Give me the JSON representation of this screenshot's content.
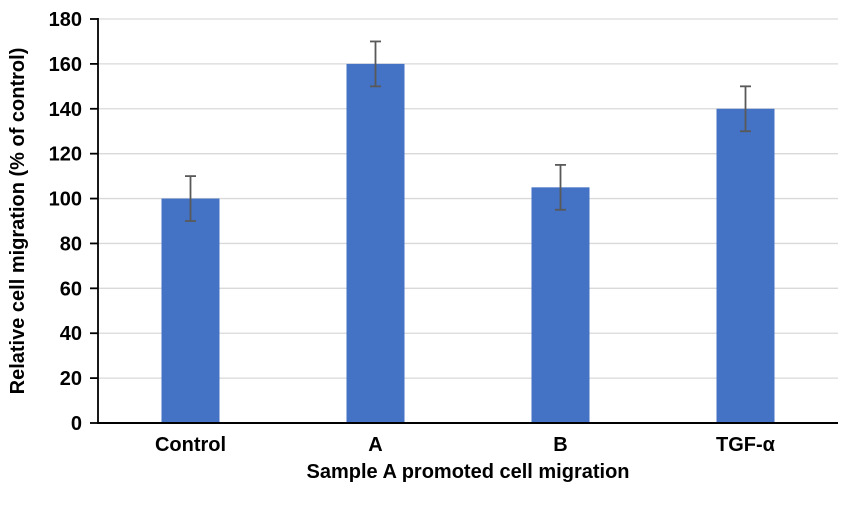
{
  "chart_data": {
    "type": "bar",
    "categories": [
      "Control",
      "A",
      "B",
      "TGF-α"
    ],
    "values": [
      100,
      160,
      105,
      140
    ],
    "errors": [
      10,
      10,
      10,
      10
    ],
    "xlabel": "Sample A promoted cell migration",
    "ylabel": "Relative cell migration (% of control)",
    "ylim": [
      0,
      180
    ],
    "yticks": [
      0,
      20,
      40,
      60,
      80,
      100,
      120,
      140,
      160,
      180
    ],
    "grid": true,
    "legend": "none",
    "bar_color": "#4472C4",
    "error_bar_color": "#595959",
    "gridline_color": "#D9D9D9",
    "axis_color": "#000000",
    "text_color": "#000000",
    "background_color": "#FFFFFF"
  }
}
